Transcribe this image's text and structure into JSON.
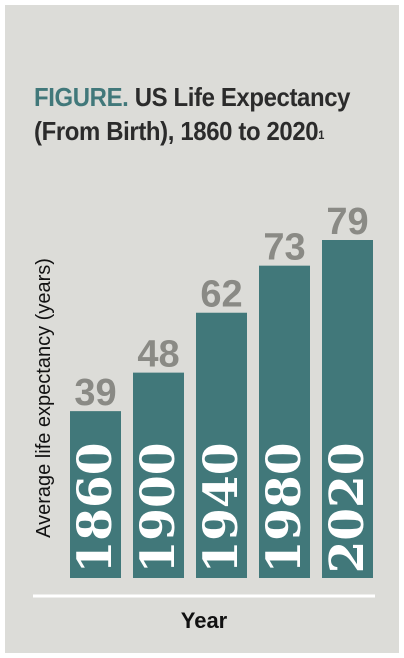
{
  "title": {
    "prefix": "FIGURE.",
    "text": "US Life Expectancy (From Birth), 1860 to 2020",
    "superscript": "1"
  },
  "chart_data": {
    "type": "bar",
    "categories": [
      "1860",
      "1900",
      "1940",
      "1980",
      "2020"
    ],
    "values": [
      39,
      48,
      62,
      73,
      79
    ],
    "xlabel": "Year",
    "ylabel": "Average life expectancy (years)",
    "ylim": [
      0,
      79
    ],
    "grid": false,
    "legend": "none"
  },
  "colors": {
    "panel_background": "#dcdcd8",
    "bar": "#41787a",
    "title_prefix": "#41787a",
    "value_label": "#8a8a85",
    "axis": "#ffffff"
  }
}
